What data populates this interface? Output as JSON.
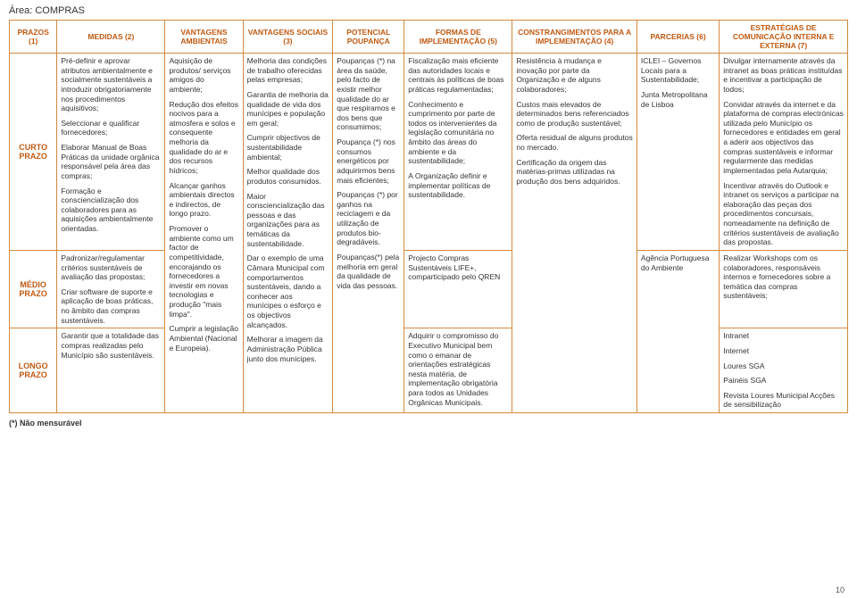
{
  "page_title": "Área: COMPRAS",
  "footnote": "(*) Não mensurável",
  "page_number": "10",
  "headers": [
    "PRAZOS (1)",
    "MEDIDAS (2)",
    "VANTAGENS AMBIENTAIS",
    "VANTAGENS SOCIAIS (3)",
    "POTENCIAL POUPANÇA",
    "FORMAS DE IMPLEMENTAÇÃO (5)",
    "CONSTRANGIMENTOS PARA A IMPLEMENTAÇÃO (4)",
    "PARCERIAS (6)",
    "ESTRATÉGIAS DE COMUNICAÇÃO INTERNA E EXTERNA (7)"
  ],
  "row_labels": {
    "curto": "CURTO PRAZO",
    "medio": "MÉDIO PRAZO",
    "longo": "LONGO PRAZO"
  },
  "medidas": {
    "curto": [
      "Pré-definir e aprovar atributos ambientalmente e socialmente sustentáveis a introduzir obrigatoriamente nos procedimentos aquisitivos;",
      "Seleccionar e qualificar fornecedores;",
      "Elaborar Manual de Boas Práticas da unidade orgânica responsável pela área das compras;",
      "Formação e consciencialização dos colaboradores para as aquisições ambientalmente orientadas."
    ],
    "medio": [
      "Padronizar/regulamentar critérios sustentáveis de avaliação das propostas;",
      "Criar software de suporte e aplicação de boas práticas, no âmbito das compras sustentáveis."
    ],
    "longo": [
      "Garantir que a totalidade das compras realizadas pelo Município são sustentáveis."
    ]
  },
  "vant_amb": [
    "Aquisição de produtos/ serviços amigos do ambiente;",
    "Redução dos efeitos nocivos para a atmosfera e solos e consequente melhoria da qualidade do ar e dos recursos hídricos;",
    "Alcançar ganhos ambientais directos e indirectos, de longo prazo.",
    "Promover o ambiente como um factor de competitividade, encorajando os fornecedores a investir em novas tecnologias e produção \"mais limpa\".",
    "Cumprir a legislação Ambiental (Nacional e Europeia)."
  ],
  "vant_soc": [
    "Melhoria das condições de trabalho oferecidas pelas empresas;",
    "Garantia de melhoria da qualidade de vida dos munícipes e população em geral;",
    "Cumprir objectivos de sustentabilidade ambiental;",
    "Melhor qualidade dos produtos consumidos.",
    "Maior consciencialização das pessoas e das organizações para as temáticas da sustentabilidade.",
    "Dar o exemplo de uma Câmara Municipal com comportamentos sustentáveis, dando a conhecer aos munícipes o esforço e os objectivos alcançados.",
    "Melhorar a imagem da Administração Pública junto dos munícipes."
  ],
  "poupanca": [
    "Poupanças (*) na área da saúde, pelo facto de existir melhor qualidade do ar que respiramos e dos bens que consumimos;",
    "Poupança (*) nos consumos energéticos por adquirirmos bens mais eficientes;",
    "Poupanças (*) por ganhos na reciclagem e da utilização de produtos bio-degradáveis.",
    "Poupanças(*) pela melhoria em geral da qualidade de vida das pessoas."
  ],
  "formas": {
    "curto": [
      "Fiscalização mais eficiente das autoridades locais e centrais às políticas de boas práticas regulamentadas;",
      "Conhecimento e cumprimento por parte de todos os intervenientes da legislação comunitária no âmbito das áreas do ambiente e da sustentabilidade;",
      "A Organização definir e implementar políticas de sustentabilidade."
    ],
    "medio": [
      "Projecto Compras Sustentáveis LIFE+, comparticipado pelo QREN"
    ],
    "longo": [
      "Adquirir o compromisso do Executivo Municipal bem como o emanar de orientações estratégicas nesta matéria, de implementação obrigatória para todos as Unidades Orgânicas Municipais."
    ]
  },
  "constrang": [
    "Resistência à mudança e inovação por parte da Organização e de alguns colaboradores;",
    "Custos mais elevados de determinados bens referenciados como de produção sustentável;",
    "Oferta residual de alguns produtos no mercado.",
    "Certificação da origem das matérias-primas utilizadas na produção dos bens adquiridos."
  ],
  "parcerias": {
    "curto": [
      "ICLEI – Governos Locais para a Sustentabilidade;",
      "Junta Metropolitana de Lisboa"
    ],
    "medio": [
      "Agência Portuguesa do Ambiente"
    ]
  },
  "estrategias": {
    "curto": [
      "Divulgar internamente através da intranet as boas práticas instituídas e incentivar a participação de todos;",
      "Convidar através da internet e da plataforma de compras electrónicas utilizada pelo Município os fornecedores e entidades em geral a aderir aos objectivos das compras sustentáveis e informar regularmente das medidas implementadas pela Autarquia;",
      "Incentivar através do Outlook e intranet os serviços a participar na elaboração das peças dos procedimentos concursais, nomeadamente na definição de critérios sustentáveis de avaliação das propostas."
    ],
    "medio": [
      "Realizar Workshops com os colaboradores, responsáveis internos e fornecedores sobre a temática das compras sustentáveis;"
    ],
    "longo": [
      "Intranet",
      "Internet",
      "Loures SGA",
      "Painéis SGA",
      "Revista Loures Municipal Acções de sensibilização"
    ]
  }
}
